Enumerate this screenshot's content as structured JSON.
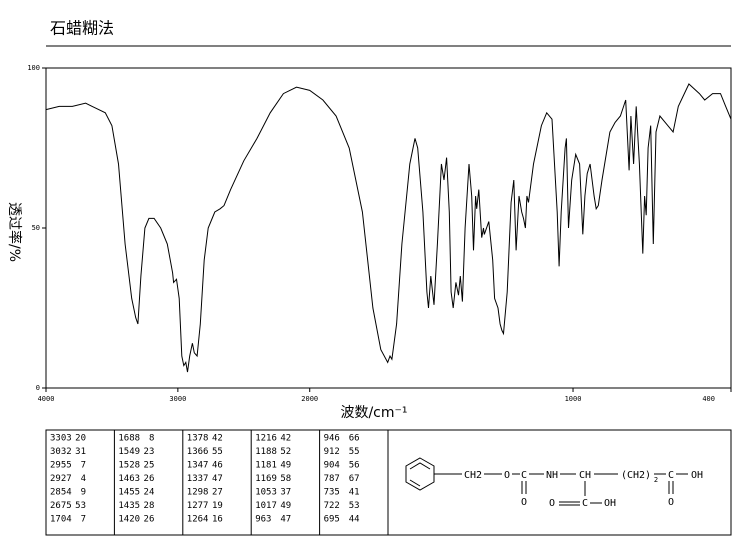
{
  "chart_data": {
    "type": "line",
    "title": "石蜡糊法",
    "x_label": "波数/cm⁻¹",
    "y_label": "透过率/%",
    "xlim": [
      4000,
      400
    ],
    "xbreak": 2000,
    "xticks": [
      4000,
      3000,
      2000,
      1000,
      400
    ],
    "ylim": [
      0,
      100
    ],
    "yticks": [
      0,
      50,
      100
    ],
    "color": "#000000",
    "series": [
      {
        "name": "spectrum",
        "color": "#000000",
        "x": [
          4000,
          3900,
          3800,
          3700,
          3650,
          3600,
          3550,
          3500,
          3450,
          3400,
          3350,
          3320,
          3303,
          3280,
          3250,
          3220,
          3180,
          3130,
          3080,
          3040,
          3032,
          3010,
          2990,
          2970,
          2955,
          2940,
          2927,
          2910,
          2890,
          2875,
          2854,
          2830,
          2800,
          2770,
          2720,
          2680,
          2650,
          2600,
          2500,
          2400,
          2300,
          2200,
          2100,
          2000,
          1950,
          1900,
          1850,
          1800,
          1760,
          1730,
          1704,
          1695,
          1688,
          1670,
          1650,
          1620,
          1600,
          1590,
          1570,
          1555,
          1549,
          1540,
          1528,
          1515,
          1500,
          1490,
          1480,
          1470,
          1463,
          1455,
          1445,
          1435,
          1428,
          1420,
          1410,
          1395,
          1385,
          1378,
          1370,
          1366,
          1358,
          1347,
          1340,
          1337,
          1320,
          1305,
          1298,
          1285,
          1277,
          1270,
          1264,
          1250,
          1235,
          1225,
          1216,
          1205,
          1195,
          1188,
          1181,
          1175,
          1169,
          1150,
          1120,
          1100,
          1080,
          1060,
          1053,
          1045,
          1030,
          1025,
          1017,
          1005,
          990,
          975,
          963,
          955,
          946,
          935,
          920,
          912,
          904,
          890,
          860,
          840,
          820,
          800,
          787,
          780,
          770,
          760,
          748,
          735,
          728,
          722,
          715,
          705,
          695,
          685,
          670,
          650,
          620,
          600,
          560,
          520,
          500,
          470,
          440,
          420,
          400
        ],
        "values": [
          87,
          88,
          88,
          89,
          88,
          87,
          86,
          82,
          70,
          45,
          28,
          22,
          20,
          35,
          50,
          53,
          53,
          50,
          45,
          36,
          33,
          34,
          28,
          10,
          7,
          8,
          5,
          10,
          14,
          11,
          10,
          20,
          40,
          50,
          55,
          56,
          57,
          62,
          71,
          78,
          86,
          92,
          94,
          93,
          90,
          85,
          75,
          55,
          25,
          12,
          8,
          10,
          9,
          20,
          45,
          70,
          78,
          75,
          55,
          30,
          25,
          35,
          26,
          45,
          70,
          65,
          72,
          55,
          30,
          25,
          33,
          29,
          35,
          27,
          50,
          70,
          60,
          43,
          60,
          56,
          62,
          47,
          50,
          48,
          52,
          40,
          28,
          25,
          20,
          18,
          17,
          30,
          58,
          65,
          43,
          60,
          55,
          53,
          50,
          60,
          58,
          70,
          82,
          86,
          84,
          55,
          38,
          55,
          75,
          78,
          50,
          65,
          73,
          70,
          48,
          60,
          67,
          70,
          60,
          56,
          57,
          65,
          80,
          83,
          85,
          90,
          68,
          85,
          70,
          88,
          70,
          42,
          60,
          54,
          75,
          82,
          45,
          80,
          85,
          83,
          80,
          88,
          95,
          92,
          90,
          92,
          92,
          88,
          84
        ]
      }
    ]
  },
  "peaks": [
    [
      3303,
      20
    ],
    [
      3032,
      31
    ],
    [
      2955,
      7
    ],
    [
      2927,
      4
    ],
    [
      2854,
      9
    ],
    [
      2675,
      53
    ],
    [
      1704,
      7
    ],
    [
      1688,
      8
    ],
    [
      1549,
      23
    ],
    [
      1528,
      25
    ],
    [
      1463,
      26
    ],
    [
      1455,
      24
    ],
    [
      1435,
      28
    ],
    [
      1420,
      26
    ],
    [
      1378,
      42
    ],
    [
      1366,
      55
    ],
    [
      1347,
      46
    ],
    [
      1337,
      47
    ],
    [
      1298,
      27
    ],
    [
      1277,
      19
    ],
    [
      1264,
      16
    ],
    [
      1216,
      42
    ],
    [
      1188,
      52
    ],
    [
      1181,
      49
    ],
    [
      1169,
      58
    ],
    [
      1053,
      37
    ],
    [
      1017,
      49
    ],
    [
      963,
      47
    ],
    [
      946,
      66
    ],
    [
      912,
      55
    ],
    [
      904,
      56
    ],
    [
      787,
      67
    ],
    [
      735,
      41
    ],
    [
      722,
      53
    ],
    [
      695,
      44
    ]
  ],
  "structure": {
    "labels": [
      "CH2",
      "O",
      "C",
      "O",
      "NH",
      "CH",
      "(CH2)",
      "2",
      "C",
      "OH",
      "O",
      "O",
      "C",
      "OH"
    ]
  }
}
